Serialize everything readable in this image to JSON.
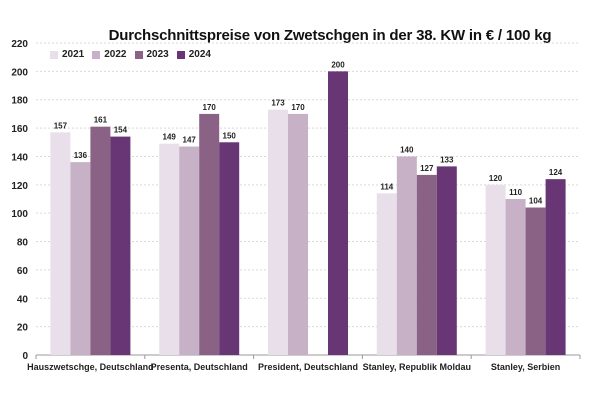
{
  "chart_data": {
    "type": "bar",
    "title": "Durchschnittspreise von Zwetschgen in der 38. KW in € / 100 kg",
    "xlabel": "",
    "ylabel": "",
    "ylim": [
      0,
      220
    ],
    "yticks": [
      0,
      20,
      40,
      60,
      80,
      100,
      120,
      140,
      160,
      180,
      200,
      220
    ],
    "grid": true,
    "legend_position": "top-left",
    "categories": [
      "Hauszwetschge, Deutschland",
      "Presenta, Deutschland",
      "President, Deutschland",
      "Stanley, Republik Moldau",
      "Stanley, Serbien"
    ],
    "series": [
      {
        "name": "2021",
        "color": "#e9dfea",
        "values": [
          157,
          149,
          173,
          114,
          120
        ]
      },
      {
        "name": "2022",
        "color": "#c7b1c6",
        "values": [
          136,
          147,
          170,
          140,
          110
        ]
      },
      {
        "name": "2023",
        "color": "#8a6285",
        "values": [
          161,
          170,
          null,
          127,
          104
        ]
      },
      {
        "name": "2024",
        "color": "#693675",
        "values": [
          154,
          150,
          200,
          133,
          124
        ]
      }
    ]
  }
}
